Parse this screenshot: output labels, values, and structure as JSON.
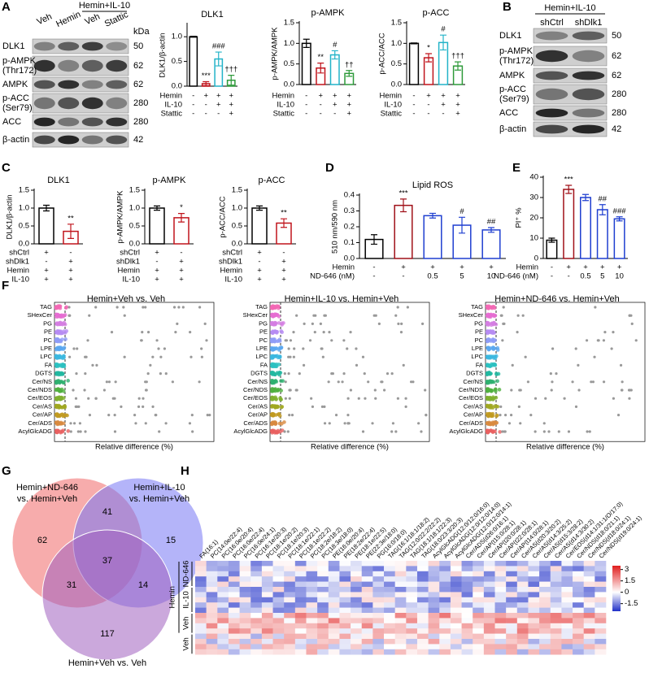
{
  "panel_labels": [
    "A",
    "B",
    "C",
    "D",
    "E",
    "F",
    "G",
    "H"
  ],
  "blots": {
    "A": {
      "group": "Hemin+IL-10",
      "lanes": [
        "Veh",
        "Hemin",
        "Veh",
        "Stattic"
      ],
      "unit": "kDa",
      "rows": [
        {
          "label": [
            "DLK1"
          ],
          "kda": 50
        },
        {
          "label": [
            "p-AMPK",
            "(Thr172)"
          ],
          "kda": 62
        },
        {
          "label": [
            "AMPK"
          ],
          "kda": 62
        },
        {
          "label": [
            "p-ACC",
            "(Ser79)"
          ],
          "kda": 280
        },
        {
          "label": [
            "ACC"
          ],
          "kda": 280
        },
        {
          "label": [
            "β-actin"
          ],
          "kda": 42
        }
      ]
    },
    "B": {
      "group": "Hemin+IL-10",
      "lanes": [
        "shCtrl",
        "shDlk1"
      ],
      "rows": [
        {
          "label": [
            "DLK1"
          ],
          "kda": 50
        },
        {
          "label": [
            "p-AMPK",
            "(Thr172)"
          ],
          "kda": 62
        },
        {
          "label": [
            "AMPK"
          ],
          "kda": 62
        },
        {
          "label": [
            "p-ACC",
            "(Ser79)"
          ],
          "kda": 280
        },
        {
          "label": [
            "ACC"
          ],
          "kda": 280
        },
        {
          "label": [
            "β-actin"
          ],
          "kda": 42
        }
      ]
    }
  },
  "chart_data": [
    {
      "type": "bar",
      "title": "DLK1",
      "ylabel": "DLK1/β-actin",
      "values": [
        1.0,
        0.05,
        0.55,
        0.12
      ],
      "errors": [
        0.01,
        0.04,
        0.14,
        0.1
      ],
      "colors": [
        "#000000",
        "#c0141c",
        "#22b3c8",
        "#2e9a3a"
      ],
      "annotations": [
        null,
        "***",
        "###",
        "†††"
      ],
      "ylim": [
        0,
        1.25
      ],
      "yticks": [
        {
          "value": 0,
          "label": "0.0"
        },
        0.5,
        {
          "value": 1,
          "label": "1.0"
        }
      ],
      "conditions": [
        {
          "name": "Hemin",
          "marks": [
            "-",
            "+",
            "+",
            "+"
          ]
        },
        {
          "name": "IL-10",
          "marks": [
            "-",
            "-",
            "+",
            "+"
          ]
        },
        {
          "name": "Stattic",
          "marks": [
            "-",
            "-",
            "-",
            "+"
          ]
        }
      ]
    },
    {
      "type": "bar",
      "title": "p-AMPK",
      "ylabel": "p-AMPK/AMPK",
      "values": [
        1.0,
        0.4,
        0.72,
        0.27
      ],
      "errors": [
        0.1,
        0.12,
        0.1,
        0.07
      ],
      "colors": [
        "#000000",
        "#c0141c",
        "#22b3c8",
        "#2e9a3a"
      ],
      "annotations": [
        null,
        "**",
        "#",
        "††"
      ],
      "ylim": [
        0,
        1.5
      ],
      "yticks": [
        {
          "value": 0,
          "label": "0.0"
        },
        0.5,
        {
          "value": 1,
          "label": "1.0"
        },
        1.5
      ],
      "conditions": [
        {
          "name": "Hemin",
          "marks": [
            "-",
            "+",
            "+",
            "+"
          ]
        },
        {
          "name": "IL-10",
          "marks": [
            "-",
            "-",
            "+",
            "+"
          ]
        },
        {
          "name": "Stattic",
          "marks": [
            "-",
            "-",
            "-",
            "+"
          ]
        }
      ]
    },
    {
      "type": "bar",
      "title": "p-ACC",
      "ylabel": "p-ACC/ACC",
      "values": [
        1.0,
        0.65,
        1.02,
        0.45
      ],
      "errors": [
        0.01,
        0.1,
        0.18,
        0.1
      ],
      "colors": [
        "#000000",
        "#c0141c",
        "#22b3c8",
        "#2e9a3a"
      ],
      "annotations": [
        null,
        "*",
        "#",
        "†††"
      ],
      "ylim": [
        0,
        1.5
      ],
      "yticks": [
        {
          "value": 0,
          "label": "0.0"
        },
        0.5,
        {
          "value": 1,
          "label": "1.0"
        },
        1.5
      ],
      "conditions": [
        {
          "name": "Hemin",
          "marks": [
            "-",
            "+",
            "+",
            "+"
          ]
        },
        {
          "name": "IL-10",
          "marks": [
            "-",
            "-",
            "+",
            "+"
          ]
        },
        {
          "name": "Stattic",
          "marks": [
            "-",
            "-",
            "-",
            "+"
          ]
        }
      ]
    },
    {
      "type": "bar",
      "title": "DLK1",
      "ylabel": "DLK1/β-actin",
      "values": [
        1.0,
        0.35
      ],
      "errors": [
        0.08,
        0.2
      ],
      "colors": [
        "#000000",
        "#c0141c"
      ],
      "annotations": [
        null,
        "**"
      ],
      "ylim": [
        0,
        1.5
      ],
      "yticks": [
        {
          "value": 0,
          "label": "0.0"
        },
        0.5,
        {
          "value": 1,
          "label": "1.0"
        },
        1.5
      ],
      "conditions": [
        {
          "name": "shCtrl",
          "marks": [
            "+",
            "-"
          ]
        },
        {
          "name": "shDlk1",
          "marks": [
            "-",
            "+"
          ]
        },
        {
          "name": "Hemin",
          "marks": [
            "+",
            "+"
          ]
        },
        {
          "name": "IL-10",
          "marks": [
            "+",
            "+"
          ]
        }
      ]
    },
    {
      "type": "bar",
      "title": "p-AMPK",
      "ylabel": "p-AMPK/AMPK",
      "values": [
        1.0,
        0.73
      ],
      "errors": [
        0.06,
        0.12
      ],
      "colors": [
        "#000000",
        "#c0141c"
      ],
      "annotations": [
        null,
        "*"
      ],
      "ylim": [
        0,
        1.5
      ],
      "yticks": [
        {
          "value": 0,
          "label": "0.0"
        },
        0.5,
        {
          "value": 1,
          "label": "1.0"
        },
        1.5
      ],
      "conditions": [
        {
          "name": "shCtrl",
          "marks": [
            "+",
            "-"
          ]
        },
        {
          "name": "shDlk1",
          "marks": [
            "-",
            "+"
          ]
        },
        {
          "name": "Hemin",
          "marks": [
            "+",
            "+"
          ]
        },
        {
          "name": "IL-10",
          "marks": [
            "+",
            "+"
          ]
        }
      ]
    },
    {
      "type": "bar",
      "title": "p-ACC",
      "ylabel": "p-ACC/ACC",
      "values": [
        1.0,
        0.58
      ],
      "errors": [
        0.06,
        0.12
      ],
      "colors": [
        "#000000",
        "#c0141c"
      ],
      "annotations": [
        null,
        "**"
      ],
      "ylim": [
        0,
        1.5
      ],
      "yticks": [
        {
          "value": 0,
          "label": "0.0"
        },
        0.5,
        {
          "value": 1,
          "label": "1.0"
        },
        1.5
      ],
      "conditions": [
        {
          "name": "shCtrl",
          "marks": [
            "+",
            "-"
          ]
        },
        {
          "name": "shDlk1",
          "marks": [
            "-",
            "+"
          ]
        },
        {
          "name": "Hemin",
          "marks": [
            "+",
            "+"
          ]
        },
        {
          "name": "IL-10",
          "marks": [
            "+",
            "+"
          ]
        }
      ]
    },
    {
      "type": "bar",
      "title": "Lipid ROS",
      "ylabel": "510 nm/590 nm",
      "values": [
        0.12,
        0.335,
        0.27,
        0.21,
        0.18
      ],
      "errors": [
        0.03,
        0.04,
        0.015,
        0.05,
        0.015
      ],
      "colors": [
        "#000000",
        "#a01018",
        "#1f3fd0",
        "#1f3fd0",
        "#1f3fd0"
      ],
      "annotations": [
        null,
        "***",
        null,
        "#",
        "##"
      ],
      "ylim": [
        0,
        0.4
      ],
      "yticks": [
        {
          "value": 0,
          "label": "0.0"
        },
        0.1,
        0.2,
        0.3,
        0.4
      ],
      "conditions": [
        {
          "name": "Hemin",
          "marks": [
            "-",
            "+",
            "+",
            "+",
            "+"
          ]
        },
        {
          "name": "ND-646 (nM)",
          "marks": [
            "-",
            "-",
            "0.5",
            "5",
            "10"
          ]
        }
      ]
    },
    {
      "type": "bar",
      "title": null,
      "ylabel": "PI⁺ %",
      "values": [
        9,
        34,
        30,
        24,
        19.5
      ],
      "errors": [
        1,
        2,
        1.5,
        2.5,
        1
      ],
      "colors": [
        "#000000",
        "#a01018",
        "#1f3fd0",
        "#1f3fd0",
        "#1f3fd0"
      ],
      "annotations": [
        null,
        "***",
        null,
        "##",
        "###"
      ],
      "ylim": [
        0,
        40
      ],
      "yticks": [
        0,
        10,
        20,
        30,
        40
      ],
      "conditions": [
        {
          "name": "Hemin",
          "marks": [
            "-",
            "+",
            "+",
            "+",
            "+"
          ]
        },
        {
          "name": "ND-646 (nM)",
          "marks": [
            "-",
            "-",
            "0.5",
            "5",
            "10"
          ]
        }
      ]
    }
  ],
  "lipid_dots": {
    "xlabel": "Relative difference (%)",
    "panels": [
      "Hemin+Veh vs. Veh",
      "Hemin+IL-10 vs. Hemin+Veh",
      "Hemin+ND-646 vs. Hemin+Veh"
    ],
    "categories": [
      "TAG",
      "SHexCer",
      "PG",
      "PE",
      "PC",
      "LPE",
      "LPC",
      "FA",
      "DGTS",
      "Cer/NS",
      "Cer/NDS",
      "Cer/EOS",
      "Cer/AS",
      "Cer/AP",
      "Cer/ADS",
      "AcylGlcADG"
    ],
    "colors": [
      "#f268b4",
      "#e66dd2",
      "#d57ee2",
      "#b68cf2",
      "#8e9cf6",
      "#5aa8f0",
      "#3bb8e0",
      "#2cc0c0",
      "#22b8a0",
      "#30b070",
      "#50b040",
      "#80b030",
      "#a0a820",
      "#c09a20",
      "#d88a40",
      "#e86060"
    ]
  },
  "venn": {
    "sets": [
      {
        "label": [
          "Hemin+ND-646",
          "vs. Hemin+Veh"
        ],
        "color": "#f06868"
      },
      {
        "label": [
          "Hemin+IL-10",
          "vs. Hemin+Veh"
        ],
        "color": "#7676f4"
      },
      {
        "label": [
          "Hemin+Veh vs. Veh"
        ],
        "color": "#a060c0"
      }
    ],
    "counts": [
      62,
      41,
      15,
      31,
      37,
      14,
      117
    ]
  },
  "heatmap": {
    "columns": [
      "FA(16:1)",
      "PC(14:0e/22:4)",
      "PC(16:0e/20:4)",
      "PC(16:0e/22:4)",
      "PC(16:0e/24:1)",
      "PC(16:1e/20:3)",
      "PC(18:1e/20:2)",
      "PC(18:1e/20:3)",
      "PC(18:1e/22:1)",
      "PC(18:1e/22:2)",
      "PC(18:2e/18:2)",
      "PC(18:3e/18:0)",
      "PE(16:0e/20:4)",
      "PE(18:2e/22:4)",
      "PE(18:1e/22:5)",
      "PE(22:3e/18:0)",
      "PG(16:0/18:0)",
      "TAG(16:1/18:1/18:2)",
      "TAG(12:0/22:2/22:2)",
      "TAG(18:1/18:1/22:3)",
      "TAG(18:0/23:3/20:3)",
      "AcylGlcADG(12:0/12:0/16:0)",
      "AcylGlcADG(12:0/12:0/14:0)",
      "AcylGlcADG(12:0/12:0/14:1)",
      "Cer/ADS(d26:0/16:1)",
      "Cer/AP(t15:0/28:1)",
      "Cer/AP(t20:0/28:1)",
      "Cer/AP(t22:0/28:1)",
      "Cer/AP(t14:0/28:1)",
      "Cer/AS(d20:3/20:2)",
      "Cer/AS(d14:3/25:2)",
      "Cer/AS(d15:3/28:2)",
      "Cer/AS(d14:3/30:2)",
      "Cer/EOS(d14:1/31:1/O/17:0)",
      "Cer/NDS(d18:0/21:1)",
      "Cer/NDS(d18:0/24:1)",
      "Cer/NDS(d19:0/24:1)"
    ],
    "groups": [
      "ND-646",
      "IL-10",
      "Veh",
      "Veh"
    ],
    "bracket": "Hemin",
    "colorbar": {
      "lim": [
        -2.5,
        3.5
      ],
      "ticks": [
        3,
        1.5,
        0,
        -1.5
      ],
      "colors": [
        "#2030c8",
        "#ffffff",
        "#e01e1e"
      ]
    }
  }
}
